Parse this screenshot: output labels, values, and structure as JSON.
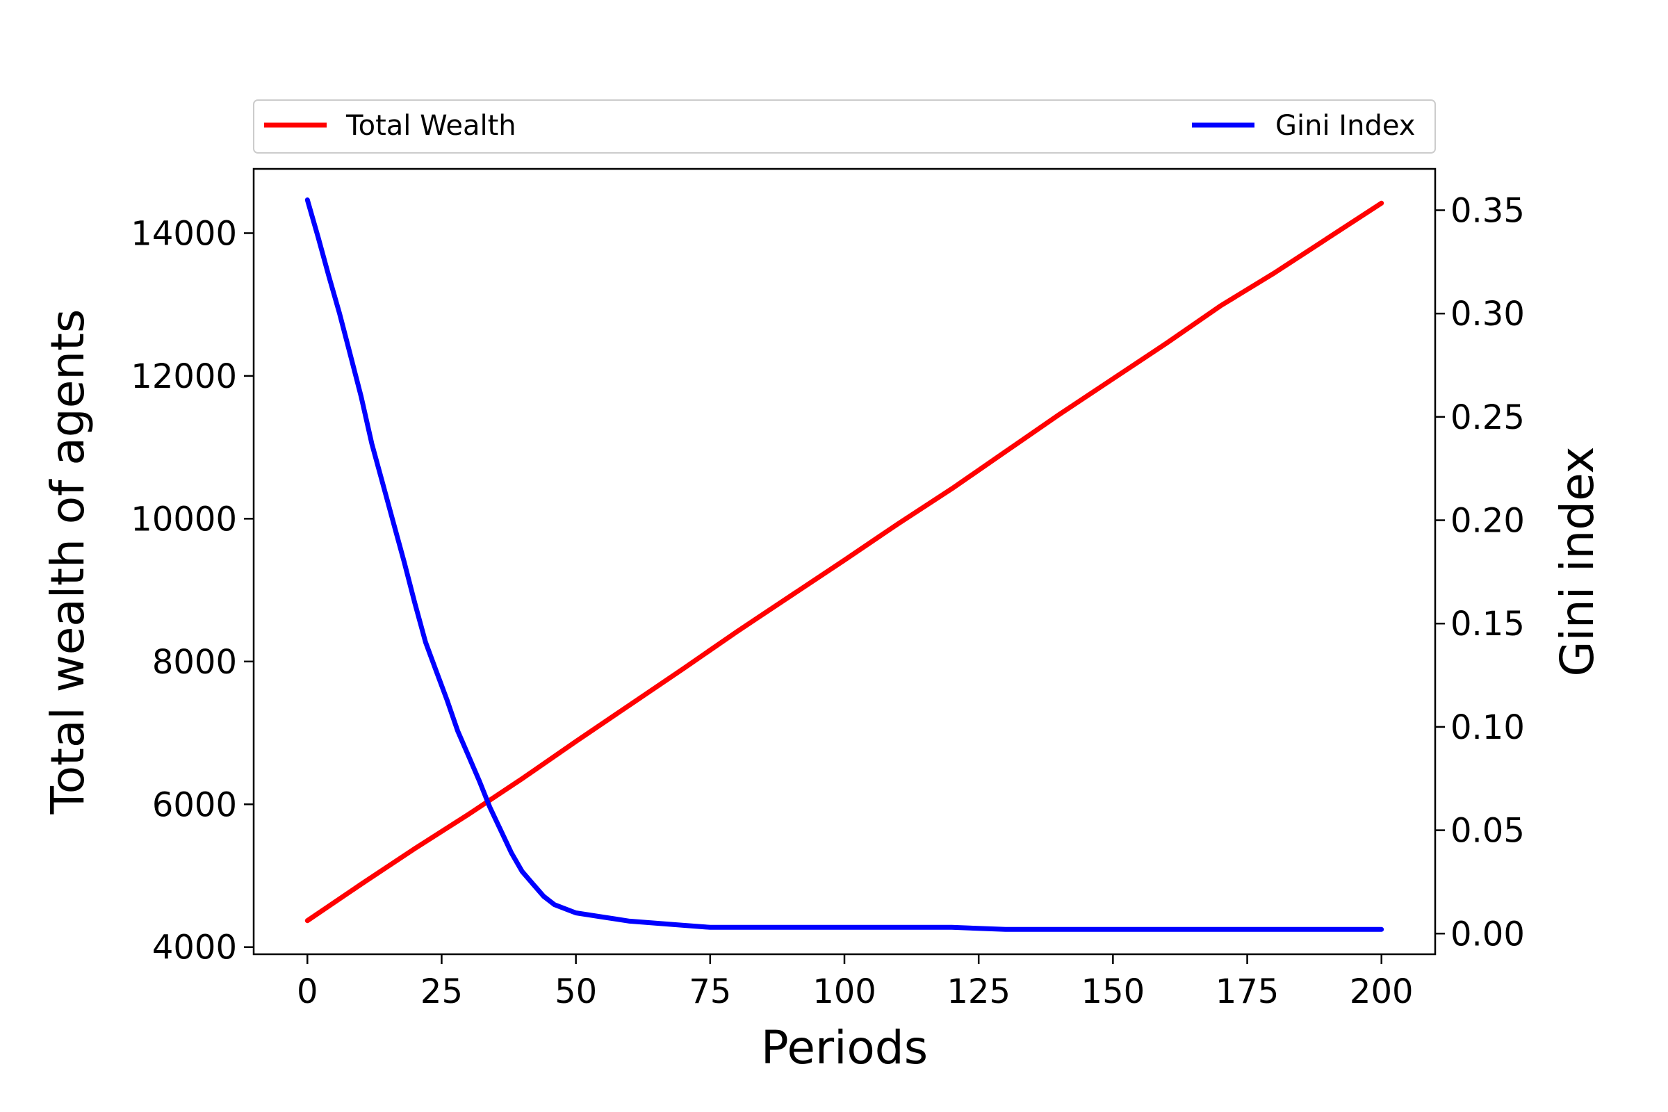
{
  "chart_data": {
    "type": "line",
    "title": "",
    "xlabel": "Periods",
    "ylabel_left": "Total wealth of agents",
    "ylabel_right": "Gini index",
    "xlim": [
      -10,
      210
    ],
    "ylim_left": [
      3900,
      14900
    ],
    "ylim_right": [
      -0.01,
      0.37
    ],
    "x_ticks": [
      0,
      25,
      50,
      75,
      100,
      125,
      150,
      175,
      200
    ],
    "y_left_ticks": [
      4000,
      6000,
      8000,
      10000,
      12000,
      14000
    ],
    "y_right_ticks": [
      "0.00",
      "0.05",
      "0.10",
      "0.15",
      "0.20",
      "0.25",
      "0.30",
      "0.35"
    ],
    "grid": false,
    "legend": {
      "placement": "top, above plot",
      "entries": [
        {
          "label": "Total Wealth",
          "color": "#ff0000"
        },
        {
          "label": "Gini Index",
          "color": "#0000ff"
        }
      ]
    },
    "series": [
      {
        "name": "Total Wealth",
        "axis": "left",
        "color": "#ff0000",
        "x": [
          0,
          10,
          20,
          30,
          40,
          50,
          60,
          70,
          80,
          90,
          100,
          110,
          120,
          130,
          140,
          150,
          160,
          170,
          180,
          190,
          200
        ],
        "values": [
          4370,
          4880,
          5380,
          5860,
          6360,
          6880,
          7390,
          7900,
          8420,
          8920,
          9420,
          9930,
          10420,
          10940,
          11460,
          11960,
          12460,
          12980,
          13440,
          13930,
          14420
        ]
      },
      {
        "name": "Gini Index",
        "axis": "right",
        "color": "#0000ff",
        "x": [
          0,
          2,
          4,
          6,
          8,
          10,
          12,
          14,
          16,
          18,
          20,
          22,
          24,
          26,
          28,
          30,
          32,
          34,
          36,
          38,
          40,
          42,
          44,
          46,
          48,
          50,
          55,
          60,
          65,
          70,
          75,
          80,
          85,
          90,
          95,
          100,
          110,
          120,
          130,
          140,
          150,
          160,
          170,
          180,
          190,
          200
        ],
        "values": [
          0.355,
          0.337,
          0.318,
          0.3,
          0.28,
          0.26,
          0.237,
          0.218,
          0.199,
          0.18,
          0.16,
          0.141,
          0.127,
          0.113,
          0.098,
          0.086,
          0.074,
          0.061,
          0.05,
          0.039,
          0.03,
          0.024,
          0.018,
          0.014,
          0.012,
          0.01,
          0.008,
          0.006,
          0.005,
          0.004,
          0.003,
          0.003,
          0.003,
          0.003,
          0.003,
          0.003,
          0.003,
          0.003,
          0.002,
          0.002,
          0.002,
          0.002,
          0.002,
          0.002,
          0.002,
          0.002
        ]
      }
    ]
  }
}
